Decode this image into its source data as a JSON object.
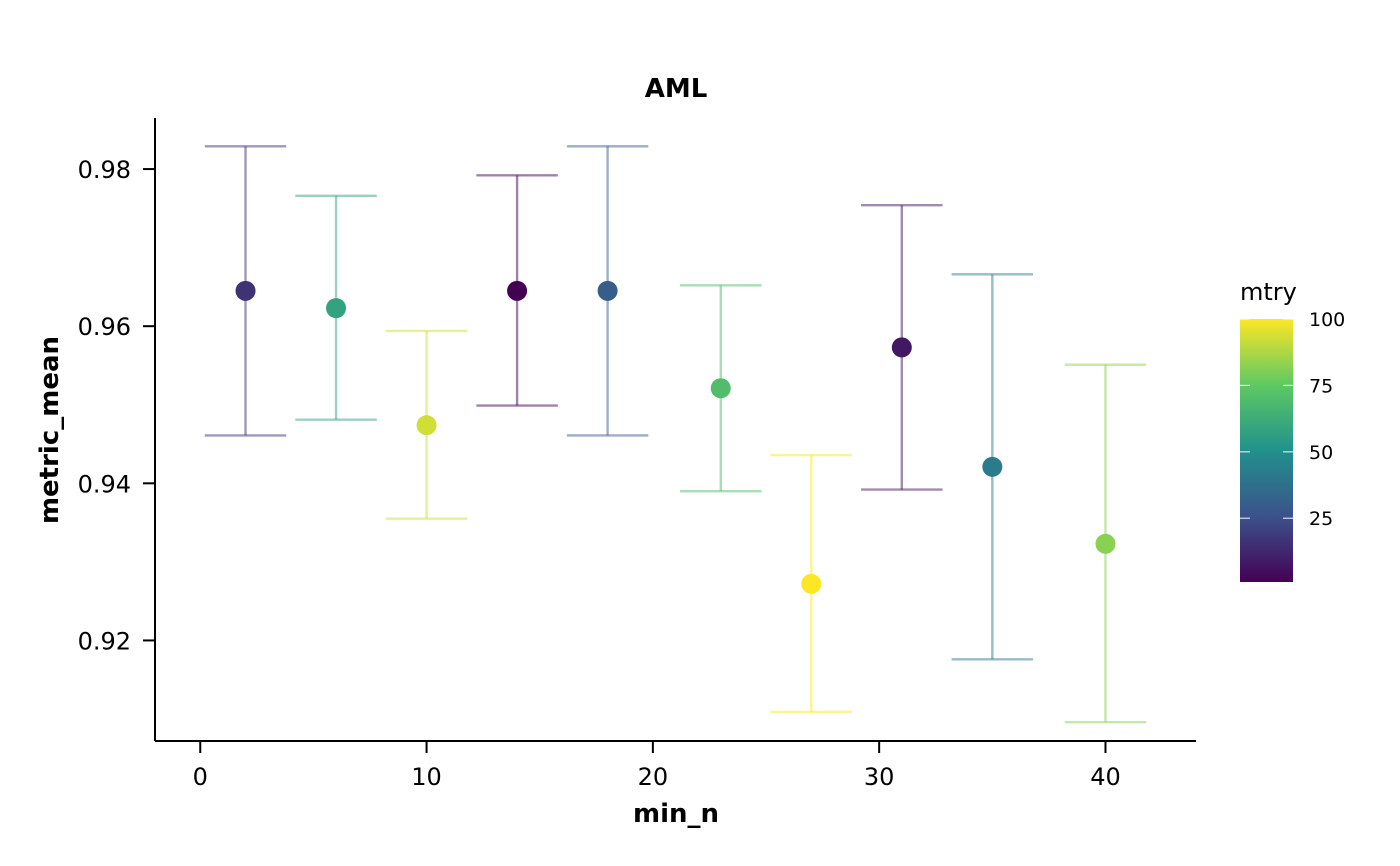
{
  "chart_data": {
    "type": "scatter",
    "title": "AML",
    "xlabel": "min_n",
    "ylabel": "metric_mean",
    "xlim": [
      -2,
      44
    ],
    "ylim": [
      0.9072,
      0.9865
    ],
    "x_ticks": [
      0,
      10,
      20,
      30,
      40
    ],
    "x_tick_labels": [
      "0",
      "10",
      "20",
      "30",
      "40"
    ],
    "y_ticks": [
      0.92,
      0.94,
      0.96,
      0.98
    ],
    "y_tick_labels": [
      "0.92",
      "0.94",
      "0.96",
      "0.98"
    ],
    "grid": false,
    "legend": {
      "title": "mtry",
      "position": "right",
      "type": "colorbar",
      "range": [
        1,
        100
      ],
      "ticks": [
        25,
        50,
        75,
        100
      ],
      "tick_labels": [
        "25",
        "50",
        "75",
        "100"
      ],
      "palette": "viridis"
    },
    "points": [
      {
        "min_n": 2,
        "metric_mean": 0.9645,
        "lower": 0.9461,
        "upper": 0.9829,
        "mtry": 16
      },
      {
        "min_n": 6,
        "metric_mean": 0.9623,
        "lower": 0.9481,
        "upper": 0.9766,
        "mtry": 58
      },
      {
        "min_n": 10,
        "metric_mean": 0.9474,
        "lower": 0.9355,
        "upper": 0.9594,
        "mtry": 93
      },
      {
        "min_n": 14,
        "metric_mean": 0.9645,
        "lower": 0.9499,
        "upper": 0.9792,
        "mtry": 1
      },
      {
        "min_n": 18,
        "metric_mean": 0.9645,
        "lower": 0.9461,
        "upper": 0.9829,
        "mtry": 30
      },
      {
        "min_n": 23,
        "metric_mean": 0.9521,
        "lower": 0.939,
        "upper": 0.9652,
        "mtry": 70
      },
      {
        "min_n": 27,
        "metric_mean": 0.9272,
        "lower": 0.9109,
        "upper": 0.9436,
        "mtry": 100
      },
      {
        "min_n": 31,
        "metric_mean": 0.9573,
        "lower": 0.9392,
        "upper": 0.9754,
        "mtry": 8
      },
      {
        "min_n": 35,
        "metric_mean": 0.9421,
        "lower": 0.9176,
        "upper": 0.9666,
        "mtry": 42
      },
      {
        "min_n": 40,
        "metric_mean": 0.9323,
        "lower": 0.9096,
        "upper": 0.9551,
        "mtry": 82
      }
    ]
  }
}
